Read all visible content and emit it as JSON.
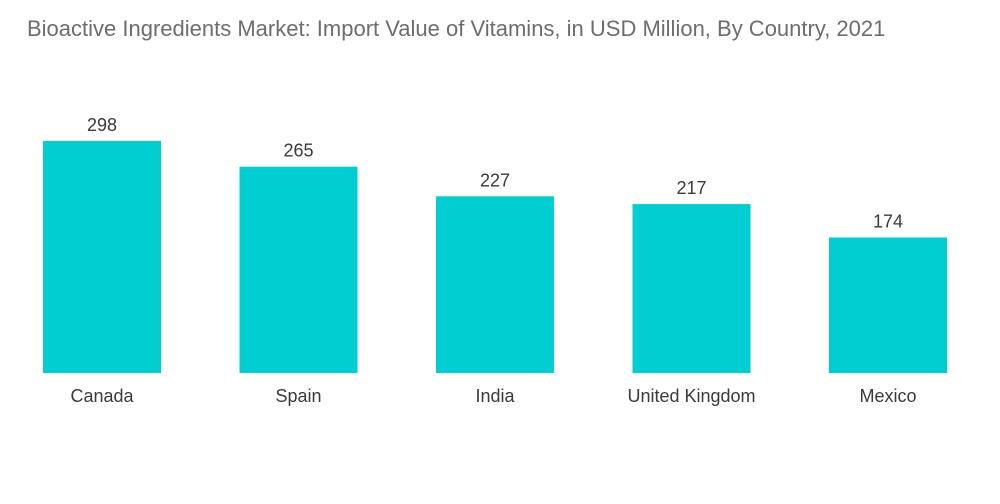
{
  "chart_data": {
    "type": "bar",
    "title": "Bioactive Ingredients Market: Import Value of Vitamins, in USD Million, By Country, 2021",
    "categories": [
      "Canada",
      "Spain",
      "India",
      "United Kingdom",
      "Mexico"
    ],
    "values": [
      298,
      265,
      227,
      217,
      174
    ],
    "data_labels": [
      "298",
      "265",
      "227",
      "217",
      "174"
    ],
    "xlabel": "",
    "ylabel": "",
    "ylim": [
      0,
      298
    ],
    "grid": false,
    "legend": "none",
    "bar_color": "#00ced1"
  }
}
